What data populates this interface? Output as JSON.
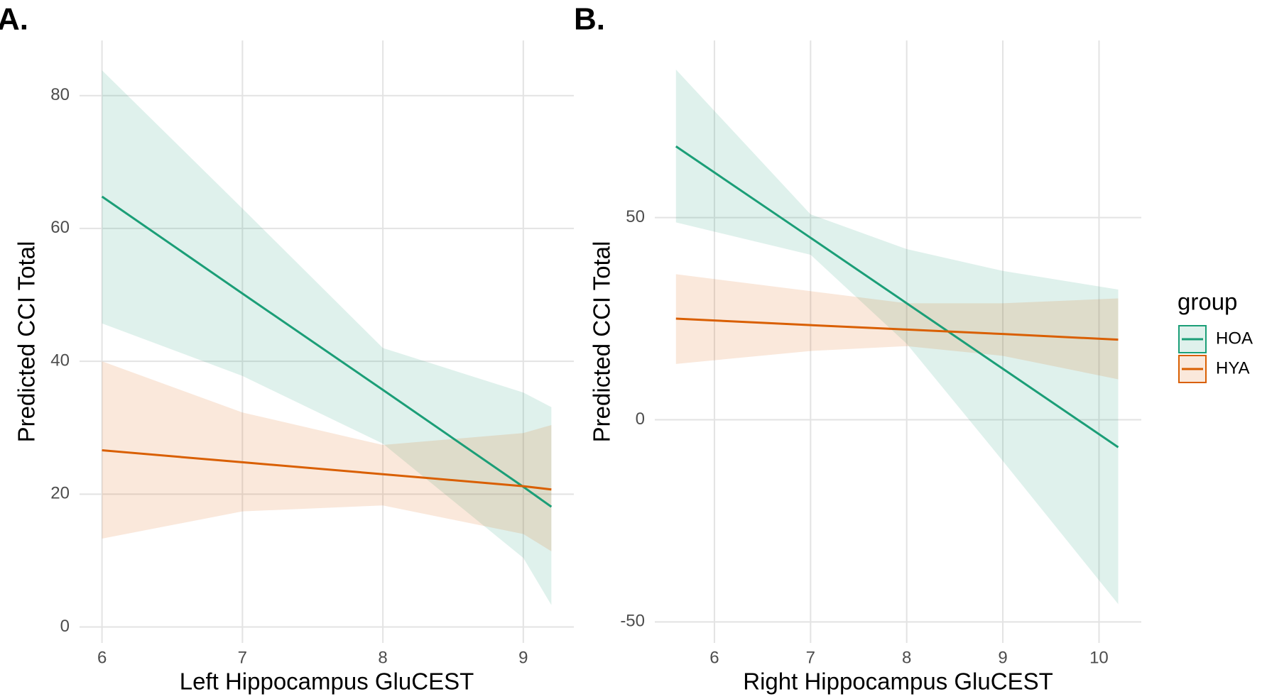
{
  "chart_data": [
    {
      "type": "line",
      "title": "A.",
      "x_label": "Left Hippocampus GluCEST",
      "y_label": "Predicted CCI Total",
      "x": [
        6,
        7,
        8,
        9,
        9.2
      ],
      "series": [
        {
          "name": "HOA",
          "color": "#1b9e77",
          "values": [
            64.8,
            50.2,
            35.7,
            21.1,
            18.1
          ],
          "lower": [
            45.7,
            37.8,
            27.6,
            10.4,
            3.3
          ],
          "upper": [
            83.8,
            63,
            42,
            35.3,
            33.1
          ]
        },
        {
          "name": "HYA",
          "color": "#d95f02",
          "values": [
            26.6,
            24.8,
            23,
            21.2,
            20.7
          ],
          "lower": [
            13.3,
            17.4,
            18.3,
            14,
            11.4
          ],
          "upper": [
            40,
            32.3,
            27.4,
            29.2,
            30.4
          ]
        }
      ],
      "xlim": [
        5.84,
        9.36
      ],
      "ylim": [
        -2.4,
        88.3
      ],
      "xticks": [
        6,
        7,
        8,
        9
      ],
      "yticks": [
        0,
        20,
        40,
        60,
        80
      ],
      "grid": true
    },
    {
      "type": "line",
      "title": "B.",
      "x_label": "Right Hippocampus GluCEST",
      "y_label": "Predicted CCI Total",
      "legend_title": "group",
      "legend": "right",
      "x": [
        5.6,
        7,
        8,
        9,
        10.2
      ],
      "series": [
        {
          "name": "HOA",
          "color": "#1b9e77",
          "values": [
            67.6,
            45,
            28.8,
            12.6,
            -6.8
          ],
          "lower": [
            48.8,
            40.8,
            18.8,
            -10.2,
            -45.6
          ],
          "upper": [
            86.6,
            50.8,
            42.2,
            36.8,
            32.2
          ]
        },
        {
          "name": "HYA",
          "color": "#d95f02",
          "values": [
            25,
            23.4,
            22.3,
            21.2,
            19.8
          ],
          "lower": [
            13.8,
            17,
            18.2,
            15.8,
            10
          ],
          "upper": [
            36,
            31.8,
            28.8,
            28.8,
            30
          ]
        }
      ],
      "xlim": [
        5.38,
        10.44
      ],
      "ylim": [
        -55.2,
        93.8
      ],
      "xticks": [
        6,
        7,
        8,
        9,
        10
      ],
      "yticks": [
        -50,
        0,
        50
      ],
      "grid": true
    }
  ]
}
